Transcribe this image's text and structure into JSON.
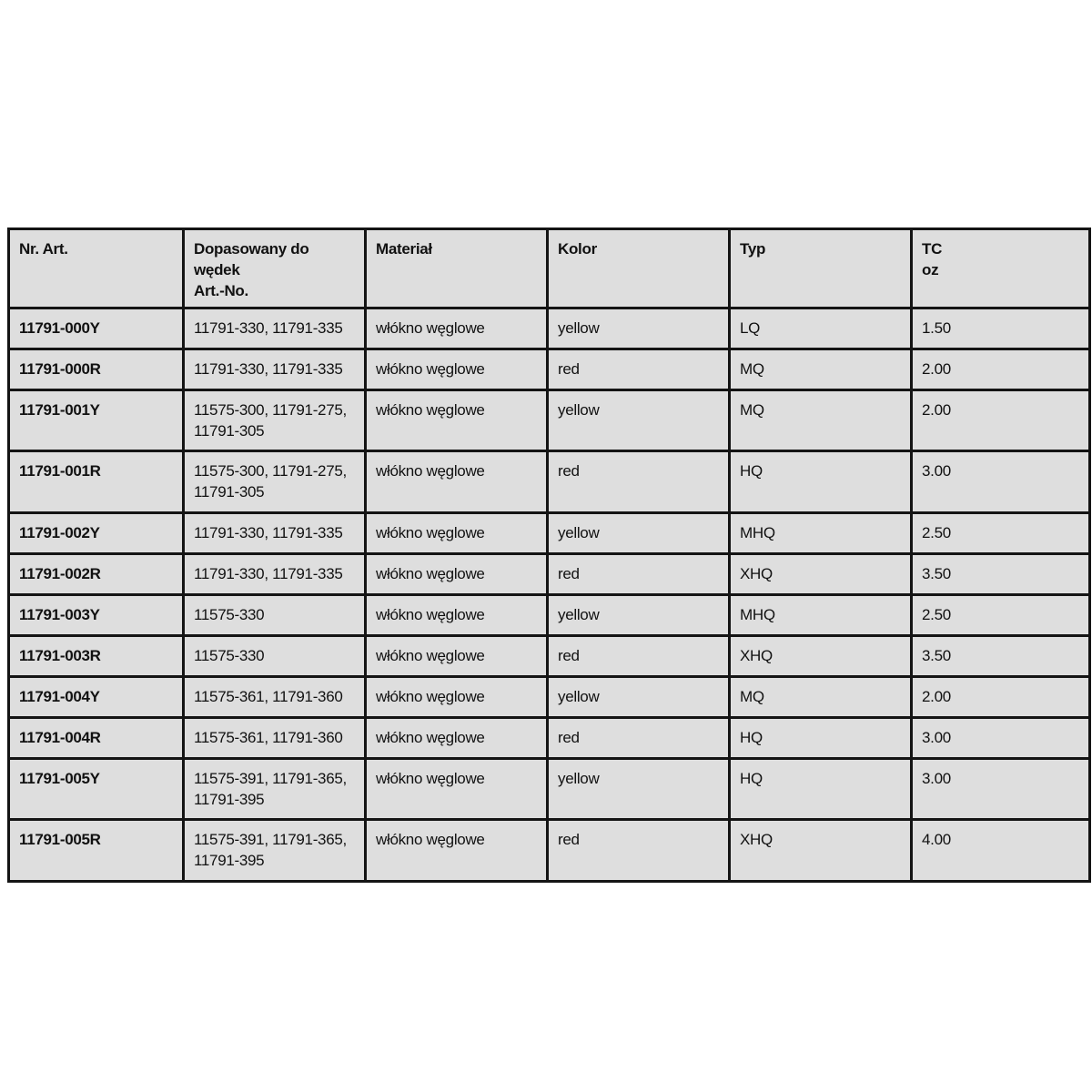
{
  "page": {
    "background_color": "#ffffff",
    "cell_fill_color": "#dedede",
    "border_color": "#141414",
    "text_color": "#111111"
  },
  "table": {
    "columns": [
      {
        "id": "art",
        "label": "Nr. Art."
      },
      {
        "id": "rods",
        "label": "Dopasowany do wędek\nArt.-No."
      },
      {
        "id": "material",
        "label": "Materiał"
      },
      {
        "id": "color",
        "label": "Kolor"
      },
      {
        "id": "typ",
        "label": "Typ"
      },
      {
        "id": "tc",
        "label": "TC\noz"
      }
    ],
    "rows": [
      {
        "art": "11791-000Y",
        "rods": "11791-330, 11791-335",
        "material": "włókno węglowe",
        "color": "yellow",
        "typ": "LQ",
        "tc": "1.50"
      },
      {
        "art": "11791-000R",
        "rods": "11791-330, 11791-335",
        "material": "włókno węglowe",
        "color": "red",
        "typ": "MQ",
        "tc": "2.00"
      },
      {
        "art": "11791-001Y",
        "rods": "11575-300, 11791-275,\n11791-305",
        "material": "włókno węglowe",
        "color": "yellow",
        "typ": "MQ",
        "tc": "2.00"
      },
      {
        "art": "11791-001R",
        "rods": "11575-300, 11791-275,\n11791-305",
        "material": "włókno węglowe",
        "color": "red",
        "typ": "HQ",
        "tc": "3.00"
      },
      {
        "art": "11791-002Y",
        "rods": "11791-330, 11791-335",
        "material": "włókno węglowe",
        "color": "yellow",
        "typ": "MHQ",
        "tc": "2.50"
      },
      {
        "art": "11791-002R",
        "rods": "11791-330, 11791-335",
        "material": "włókno węglowe",
        "color": "red",
        "typ": "XHQ",
        "tc": "3.50"
      },
      {
        "art": "11791-003Y",
        "rods": "11575-330",
        "material": "włókno węglowe",
        "color": "yellow",
        "typ": "MHQ",
        "tc": "2.50"
      },
      {
        "art": "11791-003R",
        "rods": "11575-330",
        "material": "włókno węglowe",
        "color": "red",
        "typ": "XHQ",
        "tc": "3.50"
      },
      {
        "art": "11791-004Y",
        "rods": "11575-361, 11791-360",
        "material": "włókno węglowe",
        "color": "yellow",
        "typ": "MQ",
        "tc": "2.00"
      },
      {
        "art": "11791-004R",
        "rods": "11575-361, 11791-360",
        "material": "włókno węglowe",
        "color": "red",
        "typ": "HQ",
        "tc": "3.00"
      },
      {
        "art": "11791-005Y",
        "rods": "11575-391, 11791-365,\n11791-395",
        "material": "włókno węglowe",
        "color": "yellow",
        "typ": "HQ",
        "tc": "3.00"
      },
      {
        "art": "11791-005R",
        "rods": "11575-391, 11791-365,\n11791-395",
        "material": "włókno węglowe",
        "color": "red",
        "typ": "XHQ",
        "tc": "4.00"
      }
    ]
  }
}
